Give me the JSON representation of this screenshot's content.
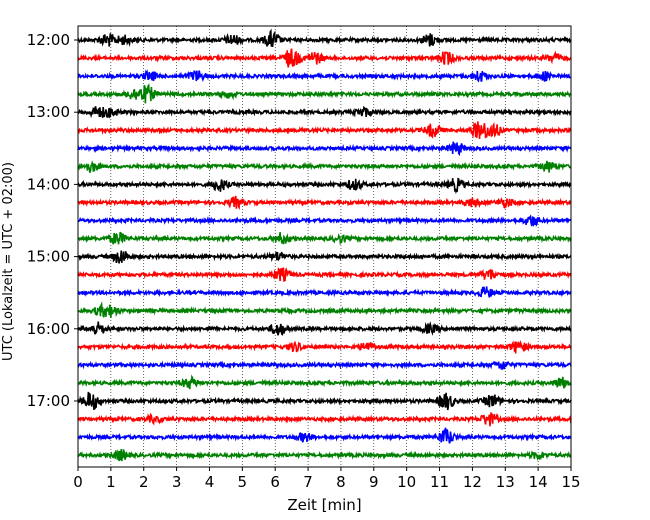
{
  "chart_data": {
    "type": "line",
    "title": "",
    "xlabel": "Zeit  [min]",
    "ylabel": "UTC (Lokalzeit = UTC + 02:00)",
    "xlim": [
      0,
      15
    ],
    "x_ticks": [
      0,
      1,
      2,
      3,
      4,
      5,
      6,
      7,
      8,
      9,
      10,
      11,
      12,
      13,
      14,
      15
    ],
    "y_tick_labels": [
      "12:00",
      "13:00",
      "14:00",
      "15:00",
      "16:00",
      "17:00"
    ],
    "x_grid": true,
    "grid_style": "dotted",
    "trace_interval_min": 15,
    "start_time": "12:00",
    "trace_colors": [
      "#000000",
      "#ff0000",
      "#0000ff",
      "#008000"
    ],
    "traces": [
      {
        "time": "12:00",
        "color": "#000000",
        "bursts": [
          [
            0.9,
            0.6
          ],
          [
            1.4,
            0.4
          ],
          [
            4.7,
            0.5
          ],
          [
            5.9,
            0.8
          ],
          [
            10.7,
            0.6
          ]
        ]
      },
      {
        "time": "12:15",
        "color": "#ff0000",
        "bursts": [
          [
            6.5,
            1.0
          ],
          [
            7.2,
            0.6
          ],
          [
            11.2,
            0.6
          ],
          [
            14.5,
            0.4
          ]
        ]
      },
      {
        "time": "12:30",
        "color": "#0000ff",
        "bursts": [
          [
            2.2,
            0.4
          ],
          [
            3.6,
            0.5
          ],
          [
            12.2,
            0.5
          ],
          [
            14.2,
            0.4
          ]
        ]
      },
      {
        "time": "12:45",
        "color": "#008000",
        "bursts": [
          [
            1.7,
            0.5
          ],
          [
            2.1,
            0.8
          ],
          [
            4.6,
            0.3
          ]
        ]
      },
      {
        "time": "13:00",
        "color": "#000000",
        "bursts": [
          [
            0.6,
            0.5
          ],
          [
            1.0,
            0.4
          ],
          [
            8.7,
            0.4
          ]
        ]
      },
      {
        "time": "13:15",
        "color": "#ff0000",
        "bursts": [
          [
            10.8,
            0.6
          ],
          [
            12.2,
            0.8
          ],
          [
            12.6,
            0.7
          ]
        ]
      },
      {
        "time": "13:30",
        "color": "#0000ff",
        "bursts": [
          [
            11.5,
            0.6
          ]
        ]
      },
      {
        "time": "13:45",
        "color": "#008000",
        "bursts": [
          [
            0.4,
            0.5
          ],
          [
            14.3,
            0.5
          ]
        ]
      },
      {
        "time": "14:00",
        "color": "#000000",
        "bursts": [
          [
            4.3,
            0.6
          ],
          [
            8.4,
            0.5
          ],
          [
            11.5,
            0.6
          ]
        ]
      },
      {
        "time": "14:15",
        "color": "#ff0000",
        "bursts": [
          [
            4.8,
            0.5
          ],
          [
            12.0,
            0.4
          ],
          [
            13.0,
            0.4
          ]
        ]
      },
      {
        "time": "14:30",
        "color": "#0000ff",
        "bursts": [
          [
            13.8,
            0.5
          ]
        ]
      },
      {
        "time": "14:45",
        "color": "#008000",
        "bursts": [
          [
            1.2,
            0.6
          ],
          [
            6.2,
            0.5
          ],
          [
            8.0,
            0.3
          ]
        ]
      },
      {
        "time": "15:00",
        "color": "#000000",
        "bursts": [
          [
            1.3,
            0.7
          ],
          [
            6.1,
            0.4
          ]
        ]
      },
      {
        "time": "15:15",
        "color": "#ff0000",
        "bursts": [
          [
            6.2,
            0.6
          ],
          [
            12.5,
            0.5
          ]
        ]
      },
      {
        "time": "15:30",
        "color": "#0000ff",
        "bursts": [
          [
            12.4,
            0.5
          ]
        ]
      },
      {
        "time": "15:45",
        "color": "#008000",
        "bursts": [
          [
            0.7,
            0.4
          ],
          [
            1.0,
            0.5
          ]
        ]
      },
      {
        "time": "16:00",
        "color": "#000000",
        "bursts": [
          [
            0.6,
            0.6
          ],
          [
            6.1,
            0.6
          ],
          [
            10.7,
            0.4
          ]
        ]
      },
      {
        "time": "16:15",
        "color": "#ff0000",
        "bursts": [
          [
            6.6,
            0.4
          ],
          [
            8.8,
            0.4
          ],
          [
            13.4,
            0.6
          ]
        ]
      },
      {
        "time": "16:30",
        "color": "#0000ff",
        "bursts": [
          [
            12.9,
            0.4
          ]
        ]
      },
      {
        "time": "16:45",
        "color": "#008000",
        "bursts": [
          [
            3.4,
            0.5
          ],
          [
            14.7,
            0.5
          ]
        ]
      },
      {
        "time": "17:00",
        "color": "#000000",
        "bursts": [
          [
            0.4,
            0.9
          ],
          [
            11.2,
            0.8
          ],
          [
            12.6,
            0.6
          ]
        ]
      },
      {
        "time": "17:15",
        "color": "#ff0000",
        "bursts": [
          [
            2.3,
            0.3
          ],
          [
            12.5,
            0.6
          ]
        ]
      },
      {
        "time": "17:30",
        "color": "#0000ff",
        "bursts": [
          [
            6.9,
            0.4
          ],
          [
            11.2,
            0.8
          ]
        ]
      },
      {
        "time": "17:45",
        "color": "#008000",
        "bursts": [
          [
            1.3,
            0.5
          ],
          [
            14.0,
            0.3
          ]
        ]
      }
    ]
  }
}
